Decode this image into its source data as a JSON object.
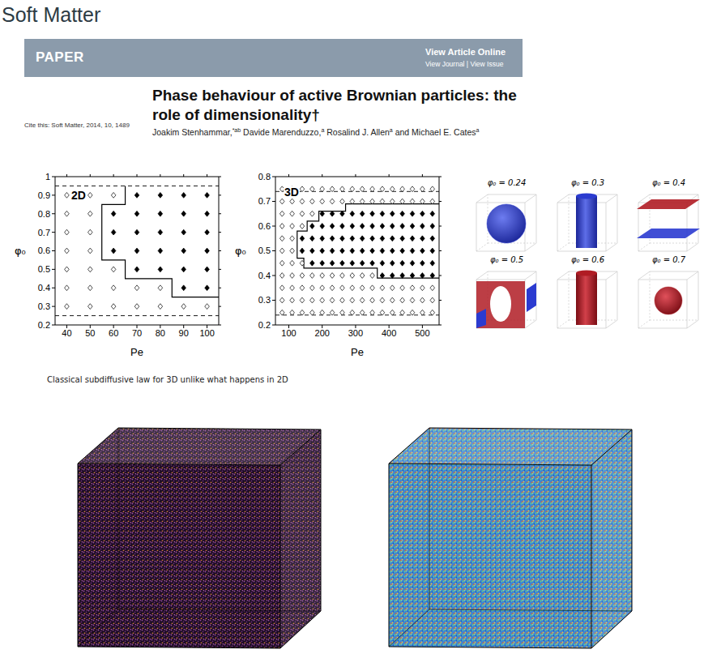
{
  "header": {
    "journal": "Soft Matter",
    "banner": "PAPER",
    "link_main": "View Article Online",
    "link_sub": "View Journal | View Issue"
  },
  "article": {
    "title": "Phase behaviour of active Brownian particles: the role of dimensionality†",
    "cite": "Cite this: Soft Matter, 2014, 10, 1489",
    "authors": [
      {
        "text": "Joakim Stenhammar,",
        "sup": "*ab"
      },
      {
        "text": "Davide Marenduzzo,",
        "sup": "a"
      },
      {
        "text": "Rosalind J. Allen",
        "sup": "a"
      },
      {
        "text": "and Michael E. Cates",
        "sup": "a"
      }
    ]
  },
  "chart_data": [
    {
      "type": "scatter",
      "label": "2D",
      "xlabel": "Pe",
      "ylabel": "φ₀",
      "marker": "diamond",
      "x": [
        40,
        50,
        60,
        70,
        80,
        90,
        100
      ],
      "y": [
        0.9,
        0.8,
        0.7,
        0.6,
        0.5,
        0.4,
        0.3
      ],
      "filled": [
        [
          0,
          0,
          0,
          1,
          1,
          1,
          1
        ],
        [
          0,
          0,
          1,
          1,
          1,
          1,
          1
        ],
        [
          0,
          0,
          1,
          1,
          1,
          1,
          1
        ],
        [
          0,
          0,
          1,
          1,
          1,
          1,
          1
        ],
        [
          0,
          0,
          0,
          1,
          1,
          1,
          1
        ],
        [
          0,
          0,
          0,
          0,
          0,
          1,
          1
        ],
        [
          0,
          0,
          0,
          0,
          0,
          0,
          0
        ]
      ],
      "boundary": {
        "x": [
          65,
          65,
          55,
          55,
          65,
          65,
          85,
          85,
          105
        ],
        "y": [
          0.95,
          0.85,
          0.85,
          0.55,
          0.55,
          0.45,
          0.45,
          0.35,
          0.35
        ],
        "line_style": "solid"
      },
      "reference_lines": {
        "y": [
          0.25,
          0.95
        ],
        "line_style": "dashed"
      },
      "xlim": [
        35,
        105
      ],
      "xticks": [
        40,
        50,
        60,
        70,
        80,
        90,
        100
      ],
      "ylim": [
        0.2,
        1
      ],
      "yticks": [
        0.2,
        0.3,
        0.4,
        0.5,
        0.6,
        0.7,
        0.8,
        0.9,
        1
      ]
    },
    {
      "type": "scatter",
      "label": "3D",
      "xlabel": "Pe",
      "ylabel": "φ₀",
      "marker": "diamond",
      "x": [
        80,
        110,
        140,
        170,
        200,
        230,
        260,
        290,
        320,
        350,
        380,
        410,
        440,
        470,
        500,
        530
      ],
      "y": [
        0.75,
        0.7,
        0.65,
        0.6,
        0.55,
        0.5,
        0.45,
        0.4,
        0.35,
        0.3,
        0.25
      ],
      "filled": [
        [
          0,
          0,
          0,
          0,
          0,
          0,
          0,
          0,
          0,
          0,
          0,
          0,
          0,
          0,
          0,
          0
        ],
        [
          0,
          0,
          0,
          0,
          0,
          0,
          0,
          0,
          0,
          0,
          0,
          0,
          0,
          0,
          0,
          0
        ],
        [
          0,
          0,
          0,
          0,
          1,
          1,
          1,
          1,
          1,
          1,
          1,
          1,
          1,
          1,
          1,
          1
        ],
        [
          0,
          0,
          0,
          1,
          1,
          1,
          1,
          1,
          1,
          1,
          1,
          1,
          1,
          1,
          1,
          1
        ],
        [
          0,
          0,
          1,
          1,
          1,
          1,
          1,
          1,
          1,
          1,
          1,
          1,
          1,
          1,
          1,
          1
        ],
        [
          0,
          0,
          1,
          1,
          1,
          1,
          1,
          1,
          1,
          1,
          1,
          1,
          1,
          1,
          1,
          1
        ],
        [
          0,
          0,
          0,
          1,
          1,
          1,
          1,
          1,
          1,
          1,
          1,
          1,
          1,
          1,
          1,
          1
        ],
        [
          0,
          0,
          0,
          0,
          0,
          0,
          0,
          0,
          0,
          0,
          1,
          1,
          1,
          1,
          1,
          1
        ],
        [
          0,
          0,
          0,
          0,
          0,
          0,
          0,
          0,
          0,
          0,
          0,
          0,
          0,
          0,
          0,
          0
        ],
        [
          0,
          0,
          0,
          0,
          0,
          0,
          0,
          0,
          0,
          0,
          0,
          0,
          0,
          0,
          0,
          0
        ],
        [
          0,
          0,
          0,
          0,
          0,
          0,
          0,
          0,
          0,
          0,
          0,
          0,
          0,
          0,
          0,
          0
        ]
      ],
      "boundary": {
        "x": [
          550,
          270,
          270,
          190,
          190,
          155,
          155,
          125,
          125,
          145,
          145,
          365,
          365,
          550
        ],
        "y": [
          0.69,
          0.69,
          0.66,
          0.66,
          0.62,
          0.62,
          0.58,
          0.58,
          0.47,
          0.47,
          0.43,
          0.43,
          0.39,
          0.39
        ],
        "line_style": "solid"
      },
      "reference_lines": {
        "y": [
          0.24,
          0.74
        ],
        "line_style": "dashed"
      },
      "xlim": [
        60,
        550
      ],
      "xticks": [
        100,
        200,
        300,
        400,
        500
      ],
      "ylim": [
        0.2,
        0.8
      ],
      "yticks": [
        0.2,
        0.3,
        0.4,
        0.5,
        0.6,
        0.7,
        0.8
      ]
    }
  ],
  "snapshots": [
    "φ₀ = 0.24",
    "φ₀ = 0.3",
    "φ₀ = 0.4",
    "φ₀ = 0.5",
    "φ₀ = 0.6",
    "φ₀ = 0.7"
  ],
  "caption": "Classical subdiffusive law for 3D unlike what happens in 2D"
}
